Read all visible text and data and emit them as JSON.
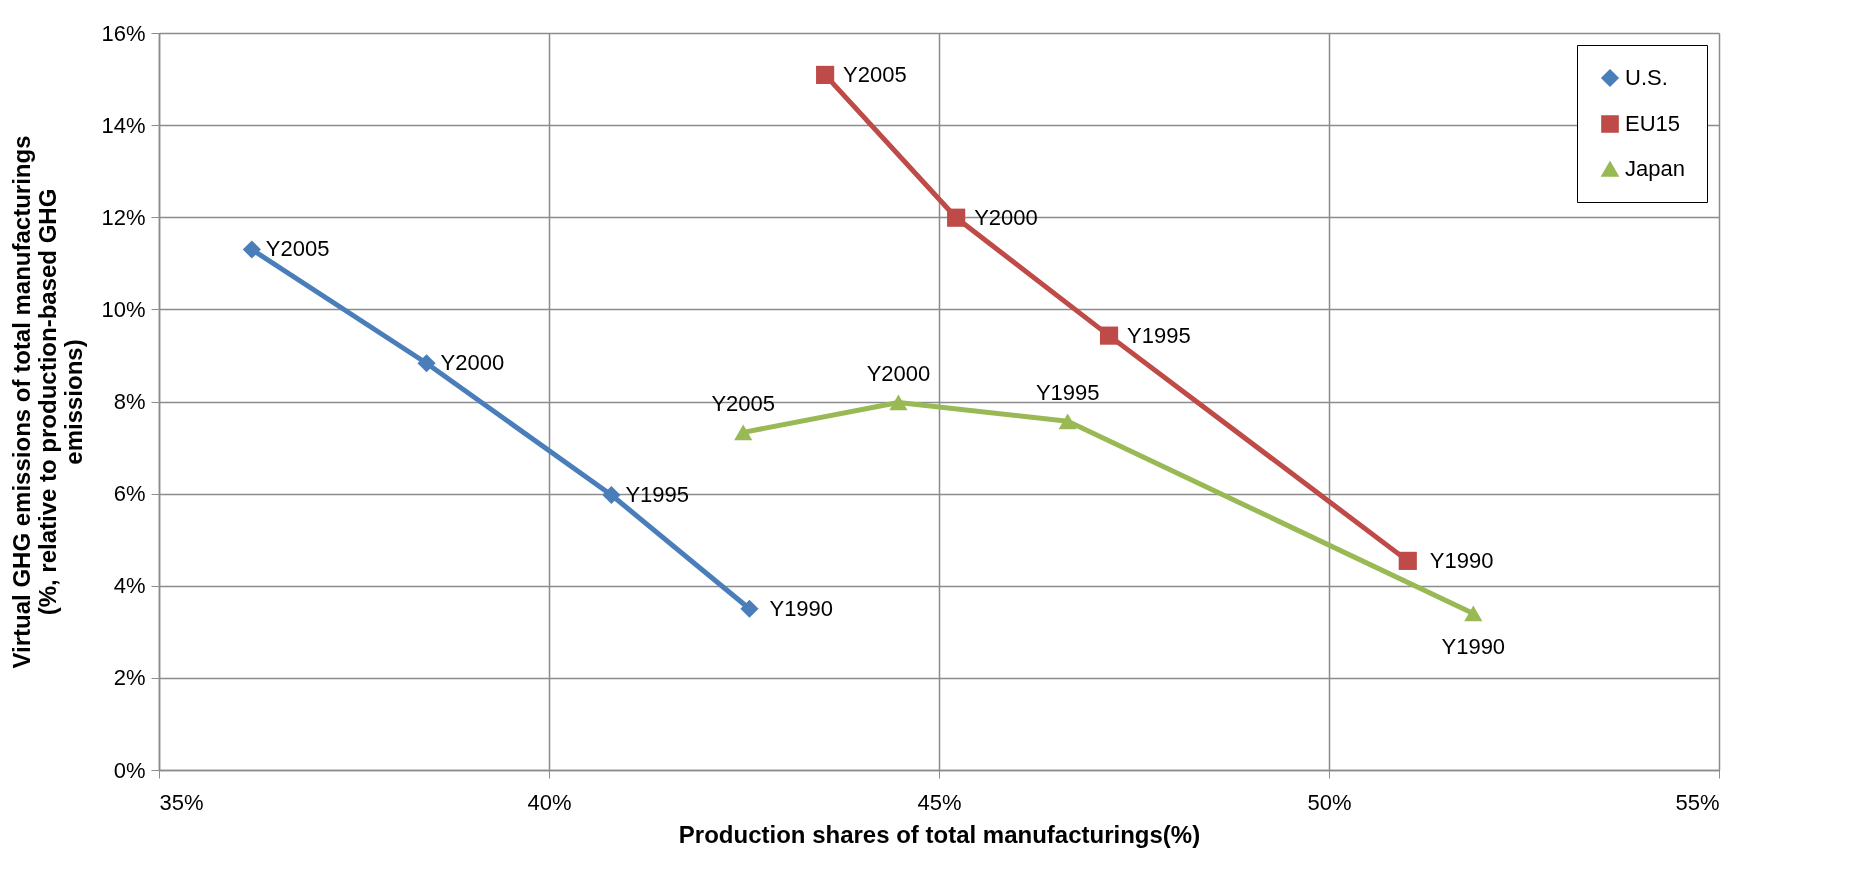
{
  "chart_data": {
    "type": "line",
    "xlabel": "Production shares of total manufacturings(%)",
    "ylabel": "Virtual GHG emissions of total manufacturings (%, relative to production-based GHG emissions)",
    "xlim": [
      35,
      55
    ],
    "ylim": [
      0,
      16
    ],
    "xticks": [
      {
        "value": 35,
        "label": "35%"
      },
      {
        "value": 40,
        "label": "40%"
      },
      {
        "value": 45,
        "label": "45%"
      },
      {
        "value": 50,
        "label": "50%"
      },
      {
        "value": 55,
        "label": "55%"
      }
    ],
    "yticks": [
      {
        "value": 0,
        "label": "0%"
      },
      {
        "value": 2,
        "label": "2%"
      },
      {
        "value": 4,
        "label": "4%"
      },
      {
        "value": 6,
        "label": "6%"
      },
      {
        "value": 8,
        "label": "8%"
      },
      {
        "value": 10,
        "label": "10%"
      },
      {
        "value": 12,
        "label": "12%"
      },
      {
        "value": 14,
        "label": "14%"
      },
      {
        "value": 16,
        "label": "16%"
      }
    ],
    "grid": true,
    "legend": "top right",
    "line_style": "solid",
    "series": [
      {
        "name": "U.S.",
        "color": "#4a7ebb",
        "marker": "diamond",
        "x": [
          36.19,
          38.43,
          40.8,
          42.57
        ],
        "values": [
          11.3,
          8.83,
          5.97,
          3.5
        ]
      },
      {
        "name": "EU15",
        "color": "#be4b48",
        "marker": "square",
        "x": [
          43.54,
          45.22,
          47.18,
          51.01
        ],
        "values": [
          15.09,
          11.99,
          9.43,
          4.54
        ]
      },
      {
        "name": "Japan",
        "color": "#98b954",
        "marker": "triangle",
        "x": [
          42.49,
          44.48,
          46.65,
          51.85
        ],
        "values": [
          7.33,
          7.98,
          7.57,
          3.4
        ]
      }
    ],
    "annotations": [
      {
        "text": "Y2005",
        "x": 36.19,
        "y": 11.3
      },
      {
        "text": "Y2000",
        "x": 38.43,
        "y": 8.83
      },
      {
        "text": "Y1995",
        "x": 40.8,
        "y": 5.97
      },
      {
        "text": "Y1990",
        "x": 42.57,
        "y": 3.5
      },
      {
        "text": "Y2005",
        "x": 43.54,
        "y": 15.09
      },
      {
        "text": "Y2000",
        "x": 45.22,
        "y": 11.99
      },
      {
        "text": "Y1995",
        "x": 47.18,
        "y": 9.43
      },
      {
        "text": "Y1990",
        "x": 51.01,
        "y": 4.54
      },
      {
        "text": "Y2005",
        "x": 42.49,
        "y": 7.33
      },
      {
        "text": "Y2000",
        "x": 44.48,
        "y": 7.98
      },
      {
        "text": "Y1995",
        "x": 46.65,
        "y": 7.57
      },
      {
        "text": "Y1990",
        "x": 51.85,
        "y": 3.4
      }
    ]
  }
}
